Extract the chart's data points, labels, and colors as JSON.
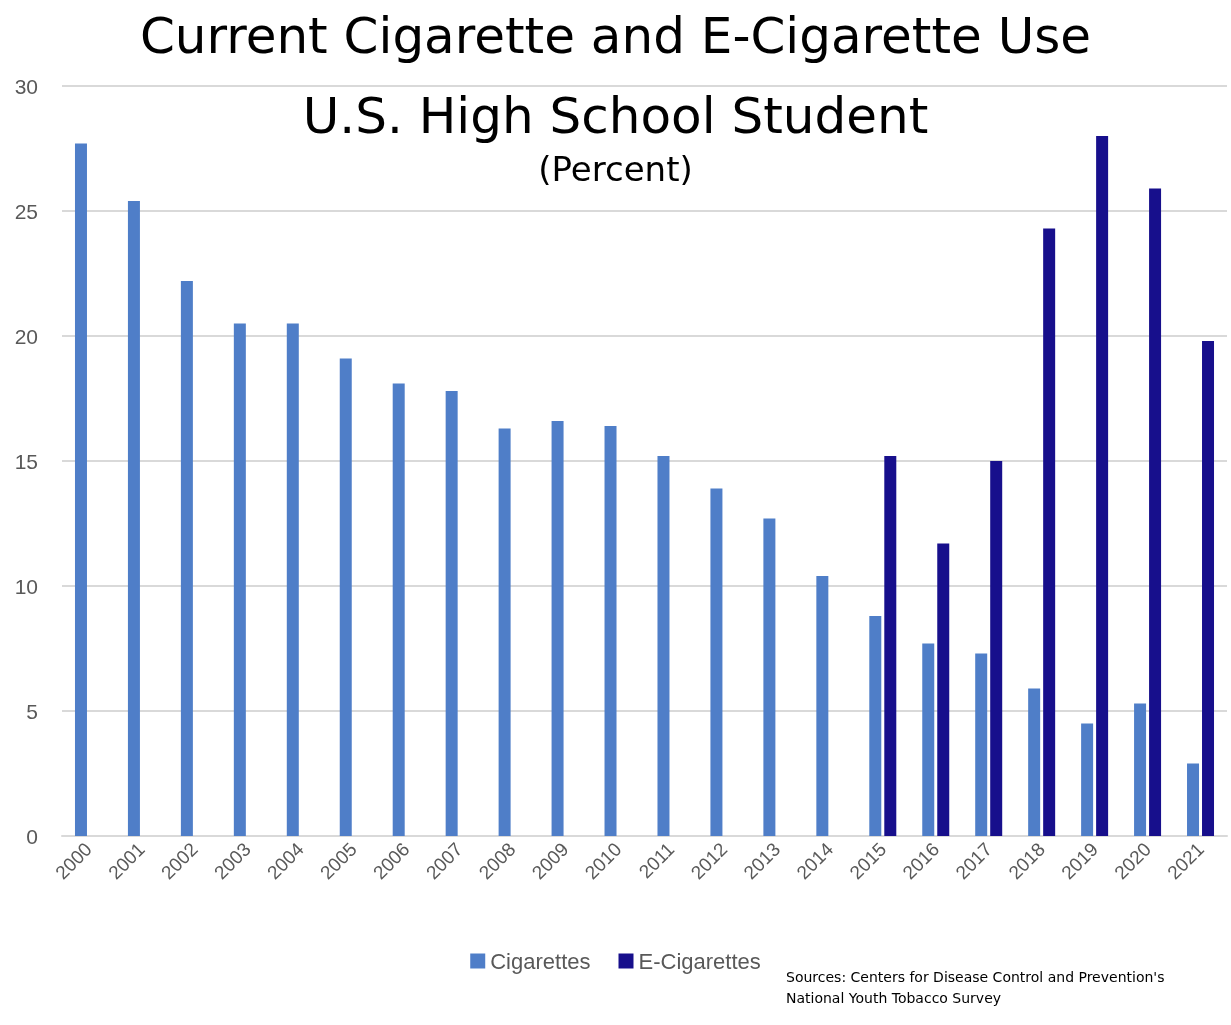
{
  "chart_data": {
    "type": "bar",
    "title": "Current Cigarette and E-Cigarette Use",
    "subtitle": "U.S. High School Student",
    "annotations": [
      "(Percent)",
      "Sources: Centers for Disease Control and Prevention's National Youth Tobacco Survey"
    ],
    "categories": [
      "2000",
      "2001",
      "2002",
      "2003",
      "2004",
      "2005",
      "2006",
      "2007",
      "2008",
      "2009",
      "2010",
      "2011",
      "2012",
      "2013",
      "2014",
      "2015",
      "2016",
      "2017",
      "2018",
      "2019",
      "2020",
      "2021"
    ],
    "series": [
      {
        "name": "Cigarettes",
        "color": "#4f7ec8",
        "values": [
          27.7,
          25.4,
          22.2,
          20.5,
          20.5,
          19.1,
          18.1,
          17.8,
          16.3,
          16.6,
          16.4,
          15.2,
          13.9,
          12.7,
          10.4,
          8.8,
          7.7,
          7.3,
          5.9,
          4.5,
          5.3,
          2.9
        ]
      },
      {
        "name": "E-Cigarettes",
        "color": "#170f8c",
        "values": [
          null,
          null,
          null,
          null,
          null,
          null,
          null,
          null,
          null,
          null,
          null,
          null,
          null,
          null,
          null,
          15.2,
          11.7,
          15.0,
          24.3,
          28.0,
          25.9,
          19.8
        ]
      }
    ],
    "ylim": [
      0,
      30
    ],
    "yticks": [
      0,
      5,
      10,
      15,
      20,
      25,
      30
    ],
    "grid": "y",
    "legend": "bottom"
  }
}
